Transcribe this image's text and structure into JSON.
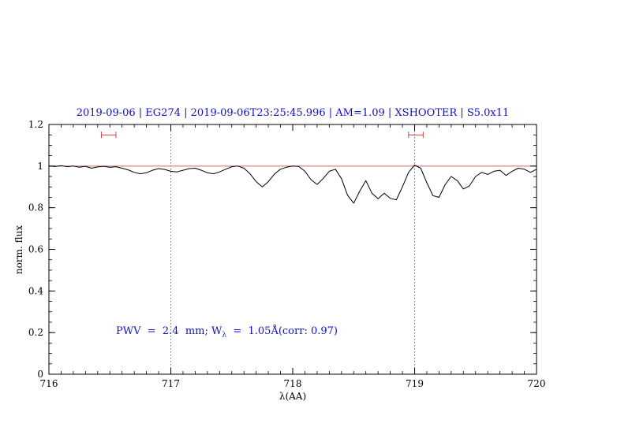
{
  "chart_data": {
    "type": "line",
    "title": "2019-09-06 | EG274 | 2019-09-06T23:25:45.996 | AM=1.09 | XSHOOTER | S5.0x11",
    "title_color": "#0f0fc8",
    "xlabel": "λ(AA)",
    "ylabel": "norm. flux",
    "xlim": [
      716,
      720
    ],
    "ylim": [
      0,
      1.2
    ],
    "x_ticks": [
      {
        "v": 716,
        "label": "716"
      },
      {
        "v": 717,
        "label": "717"
      },
      {
        "v": 718,
        "label": "718"
      },
      {
        "v": 719,
        "label": "719"
      },
      {
        "v": 720,
        "label": "720"
      }
    ],
    "y_ticks": [
      {
        "v": 0,
        "label": "0"
      },
      {
        "v": 0.2,
        "label": "0.2"
      },
      {
        "v": 0.4,
        "label": "0.4"
      },
      {
        "v": 0.6,
        "label": "0.6"
      },
      {
        "v": 0.8,
        "label": "0.8"
      },
      {
        "v": 1,
        "label": "1"
      },
      {
        "v": 1.2,
        "label": "1.2"
      }
    ],
    "x_minor_step": 0.1,
    "y_minor_step": 0.05,
    "grid": false,
    "reference_line": {
      "y": 1.0,
      "color": "#d06868"
    },
    "dotted_lines": [
      717,
      719
    ],
    "dotted_line_color": "#555555",
    "marker_color": "#cc4444",
    "range_markers": [
      {
        "center": 716.49,
        "half_width": 0.06,
        "y": 1.15
      },
      {
        "center": 719.01,
        "half_width": 0.06,
        "y": 1.15
      }
    ],
    "annotation": {
      "color": "#0f0fc8",
      "x": 716.55,
      "y": 0.2,
      "text_before_sub": "PWV  =  2.4  mm; W",
      "sub": "λ",
      "text_after_sub": "  =  1.05Å(corr: 0.97)"
    },
    "series": [
      {
        "name": "normalized-spectrum",
        "color": "#000000",
        "x_start": 716.0,
        "x_step": 0.05,
        "values": [
          1.0,
          0.998,
          1.002,
          0.997,
          1.0,
          0.995,
          0.999,
          0.99,
          0.996,
          0.999,
          0.994,
          0.997,
          0.99,
          0.982,
          0.97,
          0.963,
          0.968,
          0.98,
          0.988,
          0.984,
          0.975,
          0.972,
          0.98,
          0.988,
          0.99,
          0.98,
          0.968,
          0.963,
          0.972,
          0.985,
          0.997,
          1.0,
          0.99,
          0.963,
          0.925,
          0.9,
          0.925,
          0.962,
          0.985,
          0.995,
          1.0,
          0.998,
          0.975,
          0.935,
          0.912,
          0.94,
          0.975,
          0.985,
          0.94,
          0.86,
          0.822,
          0.88,
          0.93,
          0.87,
          0.843,
          0.87,
          0.845,
          0.838,
          0.9,
          0.97,
          1.005,
          0.99,
          0.92,
          0.858,
          0.85,
          0.91,
          0.95,
          0.93,
          0.89,
          0.905,
          0.95,
          0.97,
          0.96,
          0.975,
          0.98,
          0.955,
          0.975,
          0.99,
          0.985,
          0.97,
          0.985
        ]
      }
    ]
  }
}
